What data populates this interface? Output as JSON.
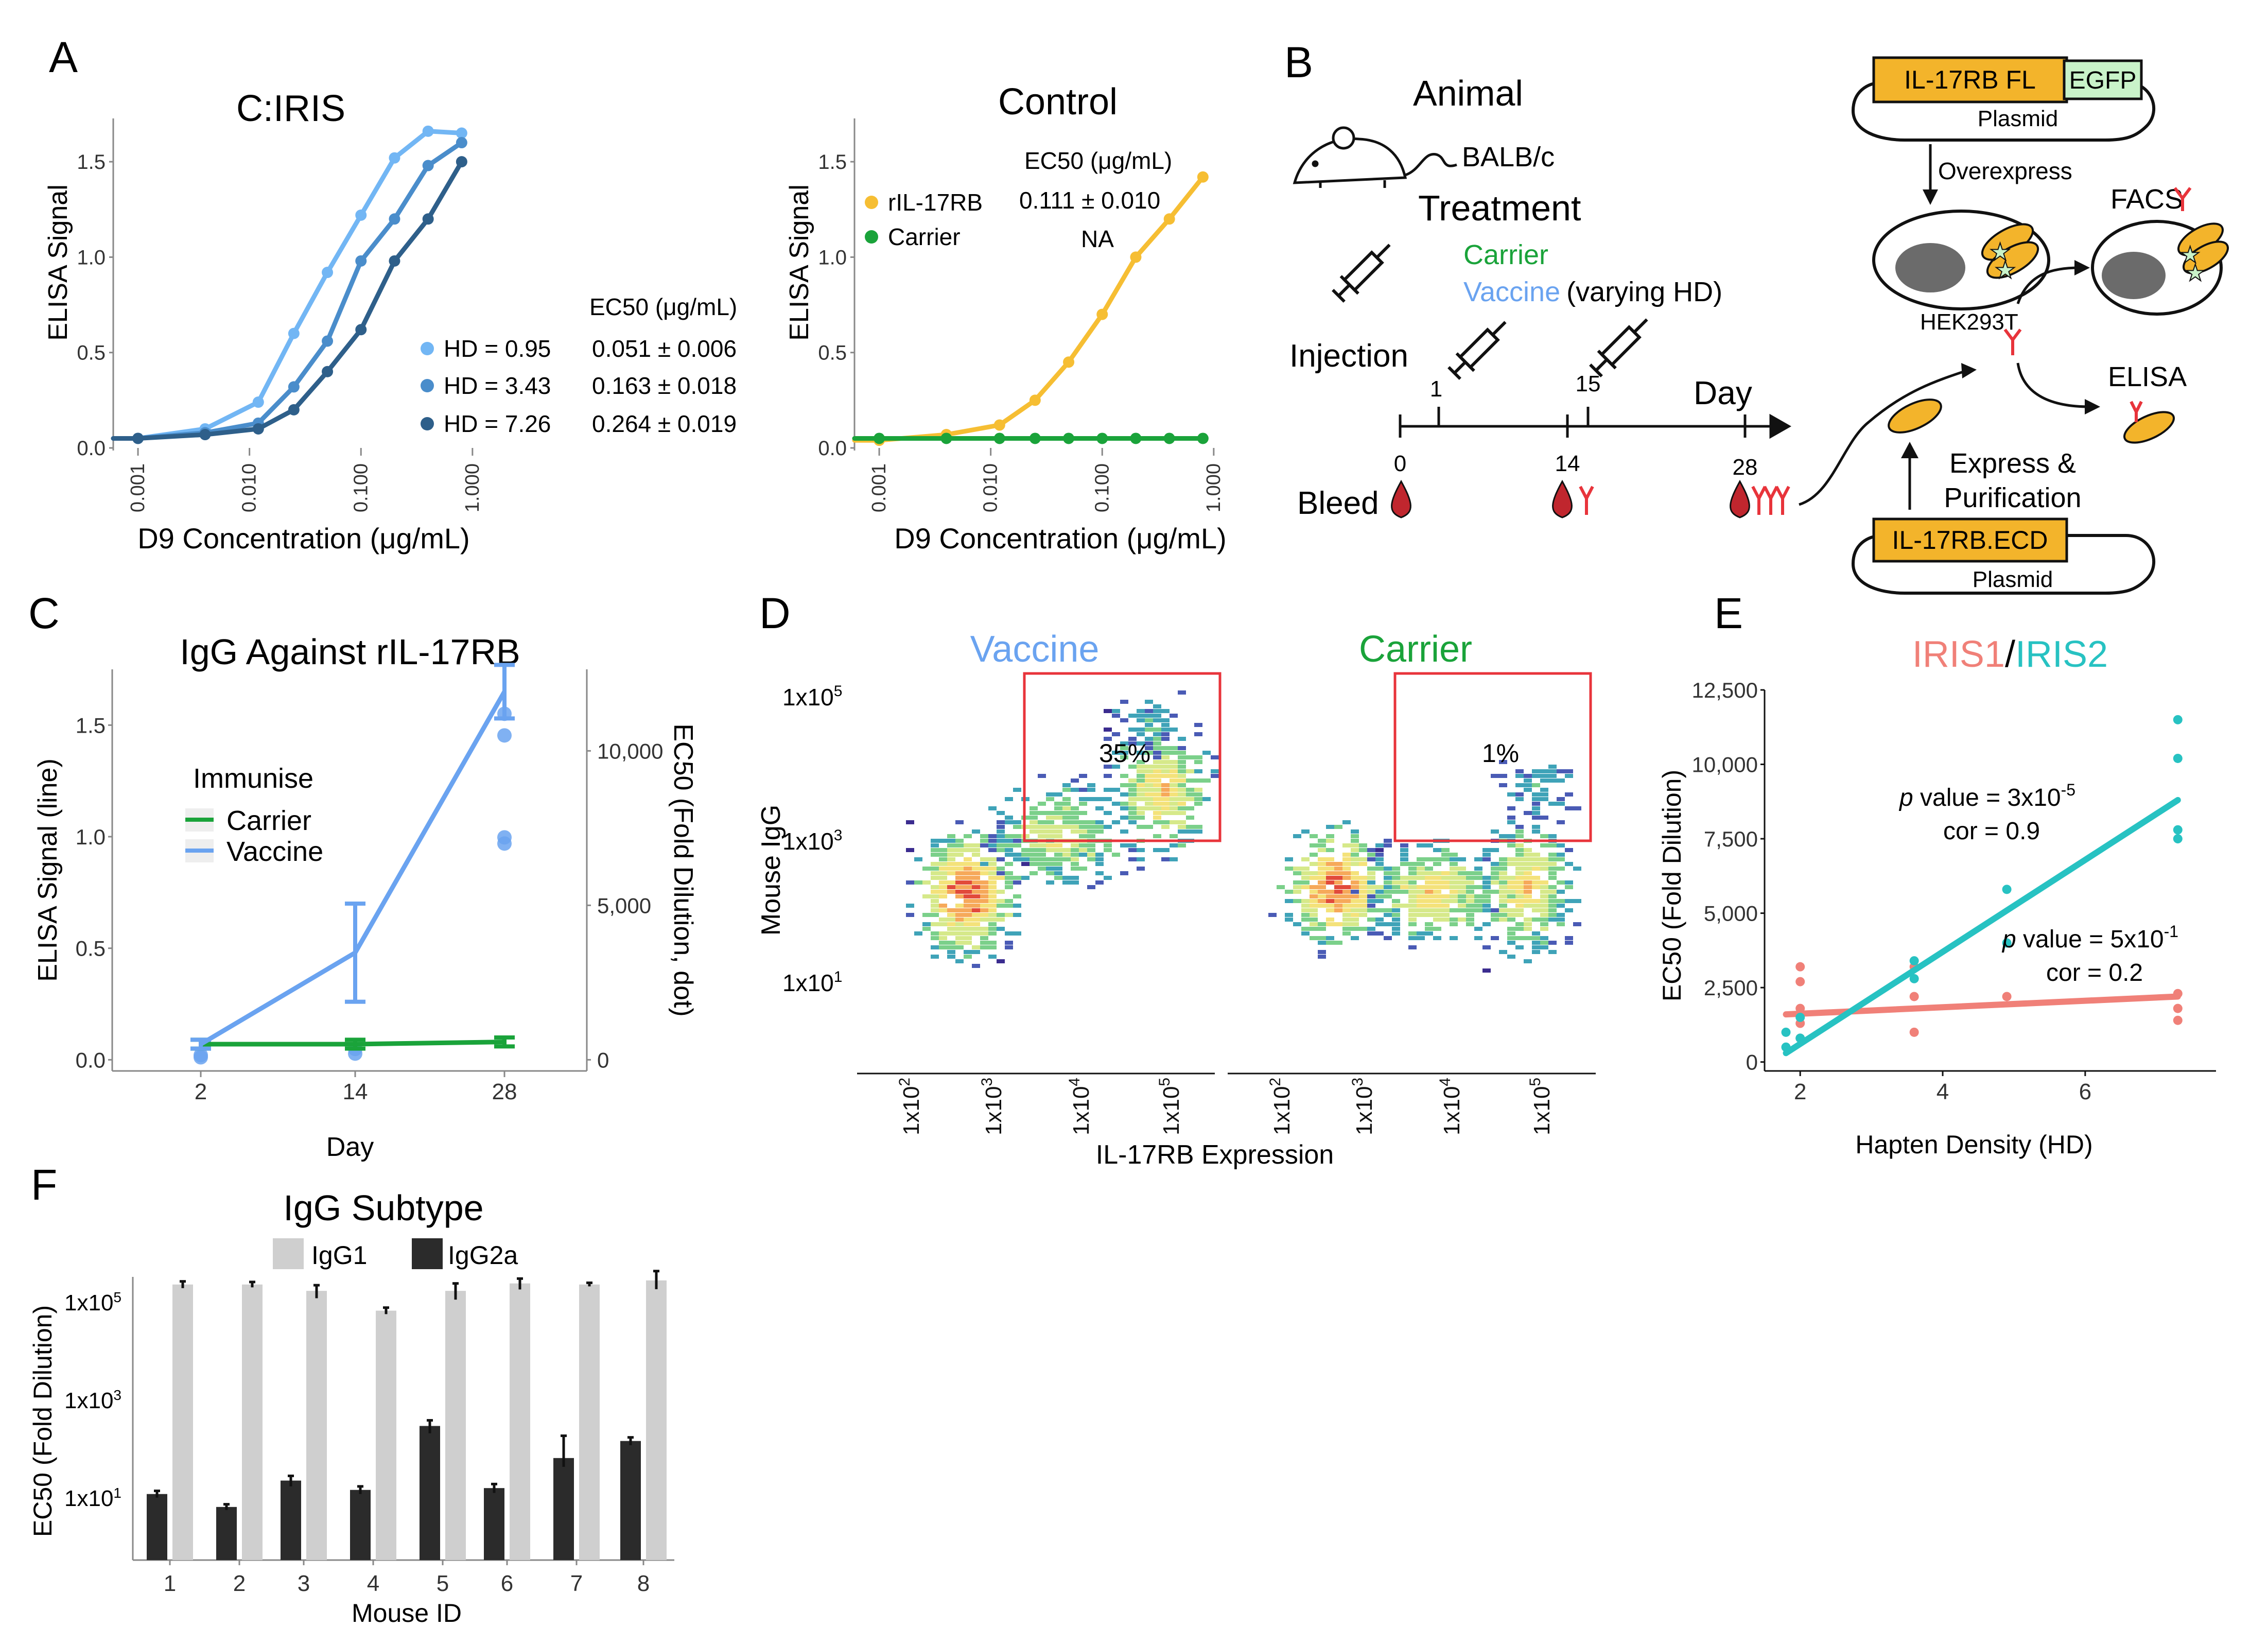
{
  "colors": {
    "hd1": "#72B6F4",
    "hd2": "#4A8DCB",
    "hd3": "#2E5F8A",
    "rIL": "#F6BE33",
    "carrier": "#1AA33A",
    "vaccine": "#6AA3F0",
    "iris1": "#F08078",
    "iris2": "#27C2C2",
    "gate": "#E8343B",
    "igg1": "#CFCFCF",
    "igg2a": "#2B2B2B",
    "orange": "#F3B42B",
    "egfp": "#C9F3C9",
    "blood": "#C0262E",
    "antibody": "#E8343B"
  },
  "panels": {
    "A": "A",
    "B": "B",
    "C": "C",
    "D": "D",
    "E": "E",
    "F": "F"
  },
  "panelA": {
    "left": {
      "title": "C:IRIS",
      "ylabel": "ELISA Signal",
      "xlabel": "D9 Concentration (μg/mL)",
      "yticks": [
        "0.0",
        "0.5",
        "1.0",
        "1.5"
      ],
      "xticks": [
        "0.001",
        "0.010",
        "0.100",
        "1.000"
      ],
      "legend": [
        {
          "label": "HD = 0.95",
          "ec50": "0.051 ± 0.006"
        },
        {
          "label": "HD = 3.43",
          "ec50": "0.163 ± 0.018"
        },
        {
          "label": "HD = 7.26",
          "ec50": "0.264 ± 0.019"
        }
      ],
      "ec50_header": "EC50 (μg/mL)"
    },
    "right": {
      "title": "Control",
      "ylabel": "ELISA Signal",
      "xlabel": "D9 Concentration (μg/mL)",
      "yticks": [
        "0.0",
        "0.5",
        "1.0",
        "1.5"
      ],
      "xticks": [
        "0.001",
        "0.010",
        "0.100",
        "1.000"
      ],
      "ec50_header": "EC50 (μg/mL)",
      "legend": [
        {
          "label": "rIL-17RB",
          "ec50": "0.111 ± 0.010"
        },
        {
          "label": "Carrier",
          "ec50": "NA"
        }
      ]
    }
  },
  "panelB": {
    "animal": "Animal",
    "strain": "BALB/c",
    "treatment": "Treatment",
    "carrier": "Carrier",
    "vaccine": "Vaccine",
    "vaccine_suffix": "(varying HD)",
    "injection": "Injection",
    "day": "Day",
    "inj_days": [
      "1",
      "15"
    ],
    "bleed": "Bleed",
    "bleed_days": [
      "0",
      "14",
      "28"
    ],
    "plasmid1": "IL-17RB FL",
    "egfp": "EGFP",
    "plasmid_label": "Plasmid",
    "overexpress": "Overexpress",
    "hek": "HEK293T",
    "facs": "FACS",
    "elisa": "ELISA",
    "express1": "Express &",
    "express2": "Purification",
    "plasmid2": "IL-17RB.ECD"
  },
  "panelC": {
    "title": "IgG Against rIL-17RB",
    "ylabel": "ELISA Signal (line)",
    "y2label": "EC50 (Fold Dilution, dot)",
    "xlabel": "Day",
    "xticks": [
      "2",
      "14",
      "28"
    ],
    "yticks": [
      "0.0",
      "0.5",
      "1.0",
      "1.5"
    ],
    "y2ticks": [
      "0",
      "5,000",
      "10,000"
    ],
    "legend_title": "Immunise",
    "legend": [
      "Carrier",
      "Vaccine"
    ]
  },
  "panelD": {
    "ylabel": "Mouse IgG",
    "xlabel": "IL-17RB Expression",
    "left_title": "Vaccine",
    "right_title": "Carrier",
    "left_pct": "35%",
    "right_pct": "1%",
    "yticks": [
      {
        "b": "1x10",
        "e": "5"
      },
      {
        "b": "1x10",
        "e": "3"
      },
      {
        "b": "1x10",
        "e": "1"
      }
    ],
    "xticks": [
      {
        "b": "1x10",
        "e": "2"
      },
      {
        "b": "1x10",
        "e": "3"
      },
      {
        "b": "1x10",
        "e": "4"
      },
      {
        "b": "1x10",
        "e": "5"
      }
    ]
  },
  "panelE": {
    "title1": "IRIS1",
    "sep": "/",
    "title2": "IRIS2",
    "ylabel": "EC50 (Fold Dilution)",
    "xlabel": "Hapten Density (HD)",
    "yticks": [
      "0",
      "2,500",
      "5,000",
      "7,500",
      "10,000",
      "12,500"
    ],
    "xticks": [
      "2",
      "4",
      "6"
    ],
    "stat1": {
      "p": "p",
      "rest": " value = 3x10",
      "exp": "-5",
      "cor": "cor = 0.9"
    },
    "stat2": {
      "p": "p",
      "rest": " value = 5x10",
      "exp": "-1",
      "cor": "cor = 0.2"
    }
  },
  "panelF": {
    "title": "IgG Subtype",
    "legend": [
      "IgG1",
      "IgG2a"
    ],
    "ylabel": "EC50 (Fold Dilution)",
    "xlabel": "Mouse ID",
    "yticks": [
      {
        "b": "1x10",
        "e": "5"
      },
      {
        "b": "1x10",
        "e": "3"
      },
      {
        "b": "1x10",
        "e": "1"
      }
    ],
    "mice": [
      "1",
      "2",
      "3",
      "4",
      "5",
      "6",
      "7",
      "8"
    ]
  },
  "chart_data": [
    {
      "type": "line",
      "panel": "A-left",
      "title": "C:IRIS",
      "xlabel": "D9 Concentration (μg/mL)",
      "ylabel": "ELISA Signal",
      "xscale": "log",
      "xlim": [
        0.0006,
        1.2
      ],
      "ylim": [
        0,
        1.7
      ],
      "series": [
        {
          "name": "HD = 0.95",
          "x": [
            0.001,
            0.004,
            0.012,
            0.025,
            0.05,
            0.1,
            0.2,
            0.4,
            0.8
          ],
          "y": [
            0.05,
            0.1,
            0.24,
            0.6,
            0.92,
            1.22,
            1.52,
            1.66,
            1.65
          ]
        },
        {
          "name": "HD = 3.43",
          "x": [
            0.001,
            0.004,
            0.012,
            0.025,
            0.05,
            0.1,
            0.2,
            0.4,
            0.8
          ],
          "y": [
            0.05,
            0.08,
            0.13,
            0.32,
            0.56,
            0.98,
            1.2,
            1.48,
            1.6
          ]
        },
        {
          "name": "HD = 7.26",
          "x": [
            0.001,
            0.004,
            0.012,
            0.025,
            0.05,
            0.1,
            0.2,
            0.4,
            0.8
          ],
          "y": [
            0.05,
            0.07,
            0.1,
            0.2,
            0.4,
            0.62,
            0.98,
            1.2,
            1.5
          ]
        }
      ]
    },
    {
      "type": "line",
      "panel": "A-right",
      "title": "Control",
      "xlabel": "D9 Concentration (μg/mL)",
      "ylabel": "ELISA Signal",
      "xscale": "log",
      "xlim": [
        0.0006,
        1.2
      ],
      "ylim": [
        0,
        1.7
      ],
      "series": [
        {
          "name": "rIL-17RB",
          "x": [
            0.001,
            0.004,
            0.012,
            0.025,
            0.05,
            0.1,
            0.2,
            0.4,
            0.8
          ],
          "y": [
            0.04,
            0.07,
            0.12,
            0.25,
            0.45,
            0.7,
            1.0,
            1.2,
            1.42
          ]
        },
        {
          "name": "Carrier",
          "x": [
            0.001,
            0.004,
            0.012,
            0.025,
            0.05,
            0.1,
            0.2,
            0.4,
            0.8
          ],
          "y": [
            0.05,
            0.05,
            0.05,
            0.05,
            0.05,
            0.05,
            0.05,
            0.05,
            0.05
          ]
        }
      ]
    },
    {
      "type": "line",
      "panel": "C",
      "title": "IgG Against rIL-17RB",
      "xlabel": "Day",
      "ylabel": "ELISA Signal (line)",
      "y2label": "EC50 (Fold Dilution, dot)",
      "categories": [
        "2",
        "14",
        "28"
      ],
      "ylim": [
        -0.05,
        1.75
      ],
      "y2lim": [
        0,
        13000
      ],
      "series": [
        {
          "name": "Carrier",
          "values": [
            0.07,
            0.07,
            0.08
          ],
          "err": [
            0.02,
            0.02,
            0.02
          ]
        },
        {
          "name": "Vaccine",
          "values": [
            0.07,
            0.48,
            1.65
          ],
          "err": [
            0.02,
            0.22,
            0.12
          ]
        }
      ],
      "dots": {
        "day2": [
          80,
          150
        ],
        "day14": [
          200,
          350
        ],
        "day28": [
          11200,
          10500,
          7200,
          7000
        ]
      }
    },
    {
      "type": "heatmap",
      "panel": "D",
      "subplots": [
        "Vaccine",
        "Carrier"
      ],
      "gate_percent": [
        "35%",
        "1%"
      ],
      "xlabel": "IL-17RB Expression",
      "ylabel": "Mouse IgG"
    },
    {
      "type": "scatter",
      "panel": "E",
      "xlabel": "Hapten Density (HD)",
      "ylabel": "EC50 (Fold Dilution)",
      "xlim": [
        1.5,
        7.8
      ],
      "ylim": [
        -300,
        12500
      ],
      "series": [
        {
          "name": "IRIS1",
          "x": [
            2,
            2,
            2,
            2,
            2,
            3.6,
            3.6,
            3.6,
            4.9,
            7.3,
            7.3,
            7.3
          ],
          "y": [
            3200,
            2700,
            1800,
            1300,
            800,
            3200,
            2200,
            1000,
            2200,
            2300,
            1800,
            1400
          ],
          "fit": {
            "x": [
              1.8,
              7.3
            ],
            "y": [
              1600,
              2200
            ]
          },
          "p": "5x10^-1",
          "cor": 0.2
        },
        {
          "name": "IRIS2",
          "x": [
            1.8,
            1.8,
            2,
            2,
            3.6,
            3.6,
            4.9,
            4.9,
            7.3,
            7.3,
            7.3,
            7.3
          ],
          "y": [
            1000,
            500,
            1500,
            800,
            3400,
            2800,
            5800,
            4000,
            11500,
            10200,
            7800,
            7500
          ],
          "fit": {
            "x": [
              1.8,
              7.3
            ],
            "y": [
              300,
              8800
            ]
          },
          "p": "3x10^-5",
          "cor": 0.9
        }
      ]
    },
    {
      "type": "bar",
      "panel": "F",
      "title": "IgG Subtype",
      "xlabel": "Mouse ID",
      "ylabel": "EC50 (Fold Dilution)",
      "yscale": "log",
      "ylim": [
        1.5,
        150000
      ],
      "categories": [
        "1",
        "2",
        "3",
        "4",
        "5",
        "6",
        "7",
        "8"
      ],
      "series": [
        {
          "name": "IgG2a",
          "values": [
            22,
            13,
            38,
            26,
            350,
            28,
            95,
            190
          ],
          "err_hi": [
            3,
            1.5,
            8,
            4,
            90,
            5,
            140,
            30
          ]
        },
        {
          "name": "IgG1",
          "values": [
            110000,
            110000,
            85000,
            38000,
            85000,
            115000,
            110000,
            130000
          ],
          "err_hi": [
            15000,
            12000,
            22000,
            5000,
            30000,
            25000,
            8000,
            60000
          ]
        }
      ]
    }
  ]
}
